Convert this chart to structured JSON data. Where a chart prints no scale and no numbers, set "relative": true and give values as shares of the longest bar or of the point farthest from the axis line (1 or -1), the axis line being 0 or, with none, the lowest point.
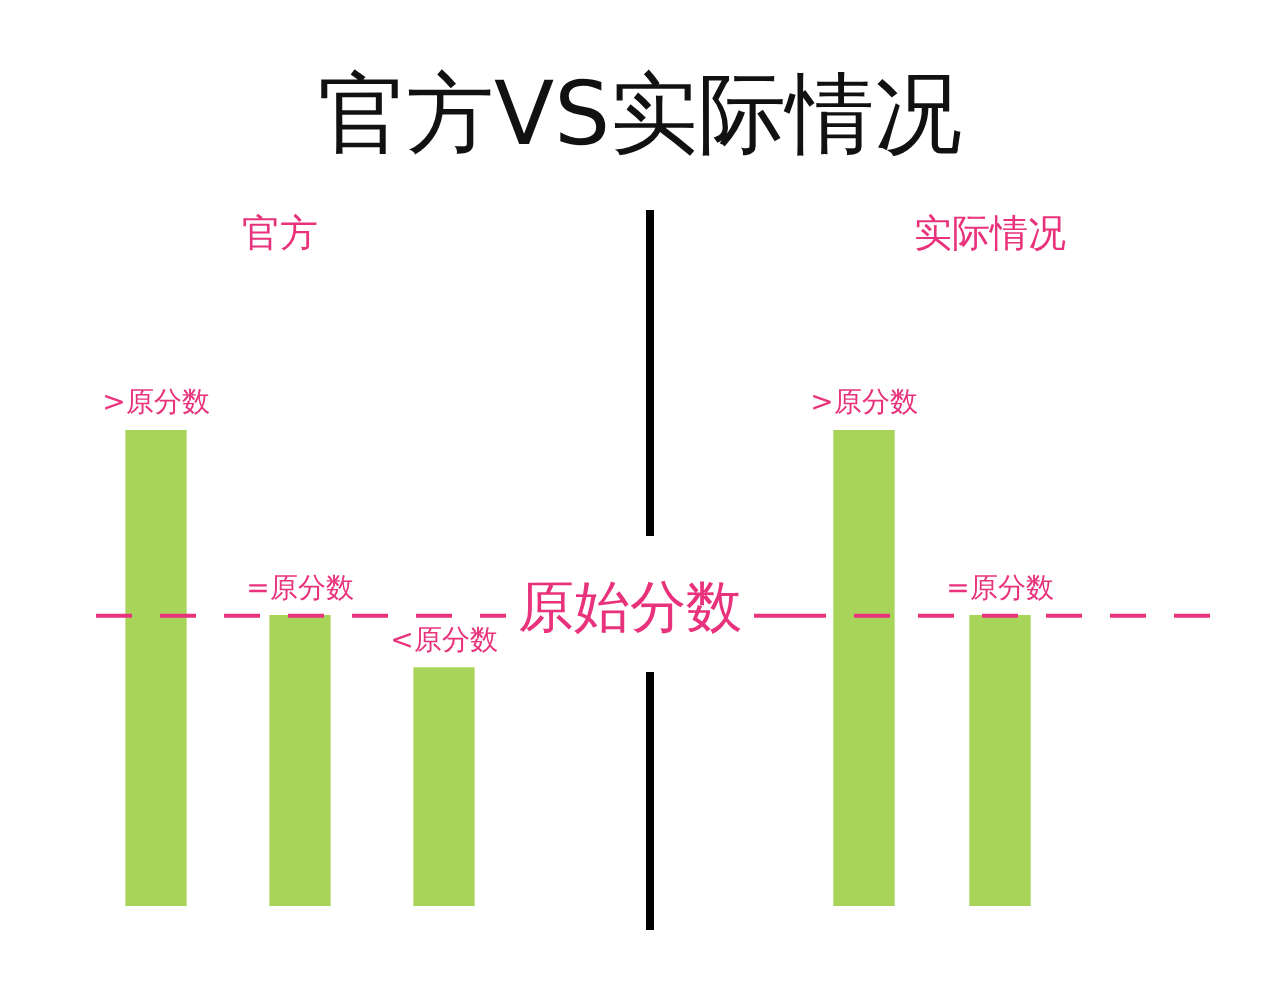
{
  "chart_data": [
    {
      "type": "bar",
      "title": "官方VS实际情况",
      "subtitle": "官方",
      "relative": true,
      "categories": [
        null,
        null,
        null
      ],
      "values": [
        1,
        0.61,
        0.5
      ],
      "color": "#a8d45a",
      "annotations": [
        {
          "text": ">原分数",
          "y": 1
        },
        {
          "text": "=原分数",
          "y": 0.61
        },
        {
          "text": "<原分数",
          "y": 0.5
        }
      ],
      "ref_lines": [
        {
          "axis": "y",
          "value": 0.61,
          "label": "原始分数",
          "color": "#e8327c",
          "line_style": "dashed"
        }
      ]
    },
    {
      "type": "bar",
      "subtitle": "实际情况",
      "relative": true,
      "categories": [
        null,
        null
      ],
      "values": [
        1,
        0.61
      ],
      "color": "#a8d45a",
      "annotations": [
        {
          "text": ">原分数",
          "y": 1
        },
        {
          "text": "=原分数",
          "y": 0.61
        }
      ],
      "ref_lines": [
        {
          "axis": "y",
          "value": 0.61,
          "color": "#e8327c",
          "line_style": "dashed"
        }
      ]
    }
  ]
}
